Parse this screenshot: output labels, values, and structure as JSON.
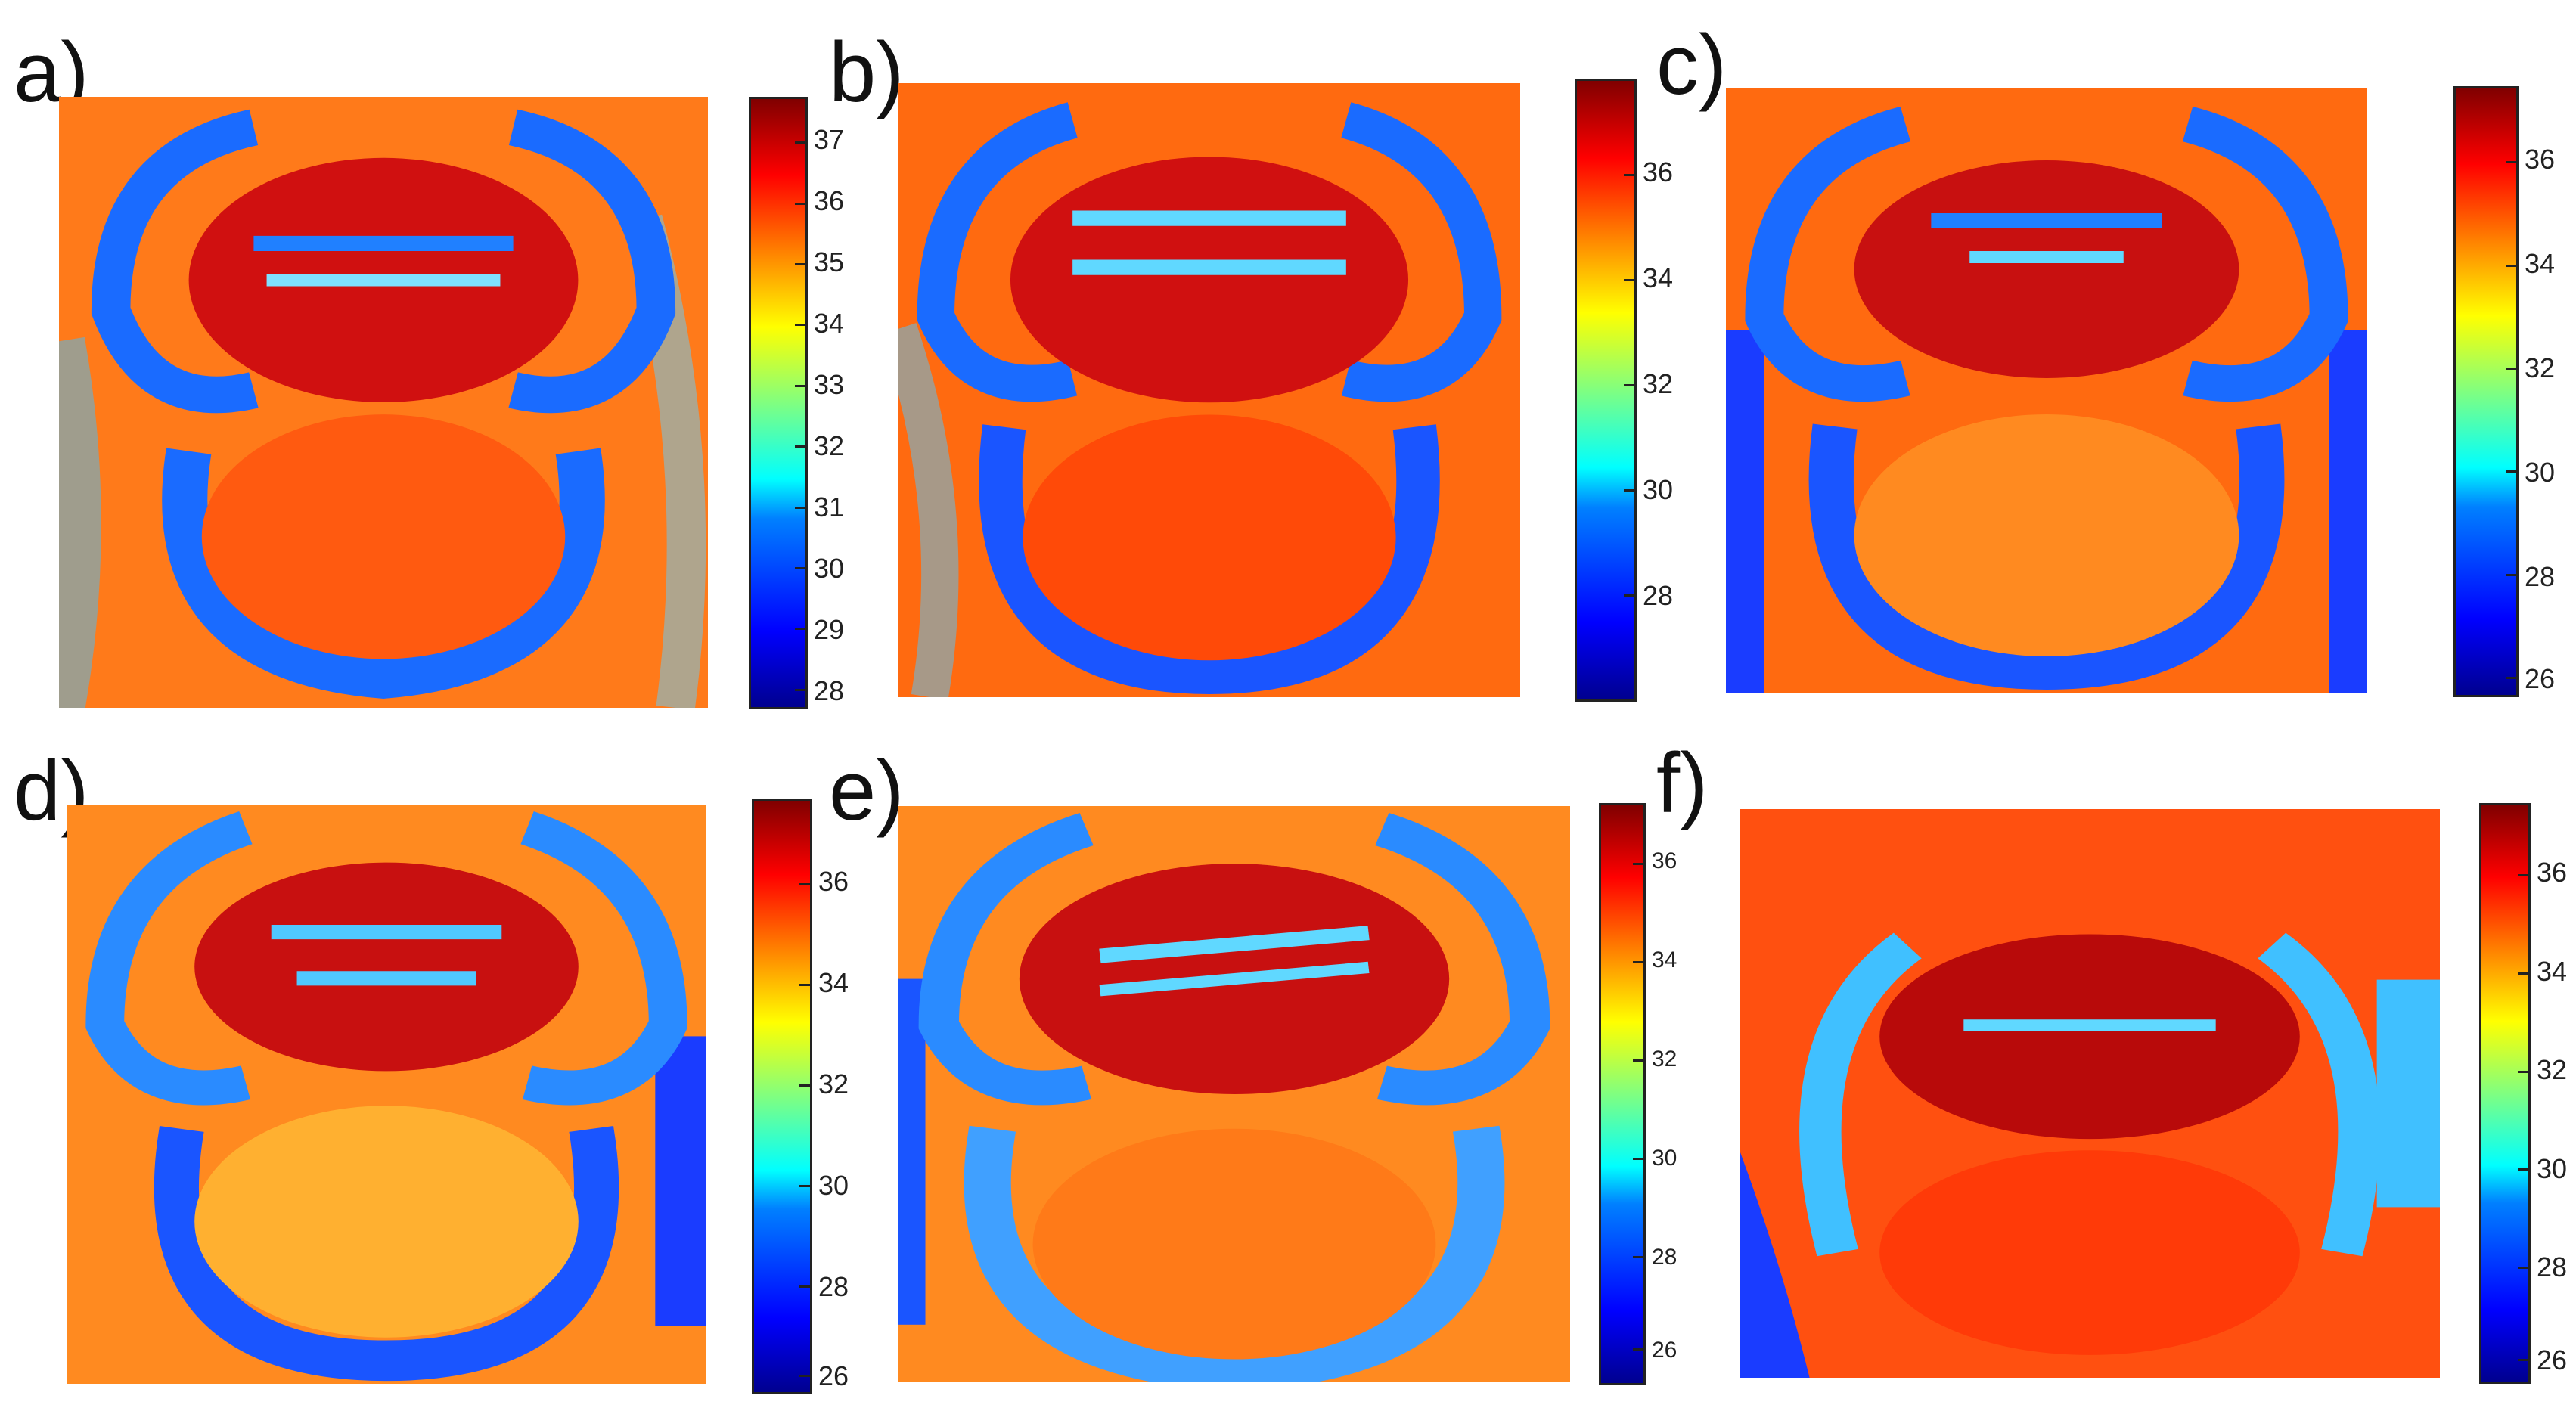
{
  "panels": [
    {
      "label": "a)",
      "ticks": [
        "37",
        "36",
        "35",
        "34",
        "33",
        "32",
        "31",
        "30",
        "29",
        "28"
      ]
    },
    {
      "label": "b)",
      "ticks": [
        "36",
        "34",
        "32",
        "30",
        "28"
      ]
    },
    {
      "label": "c)",
      "ticks": [
        "36",
        "34",
        "32",
        "30",
        "28",
        "26"
      ]
    },
    {
      "label": "d)",
      "ticks": [
        "36",
        "34",
        "32",
        "30",
        "28",
        "26"
      ]
    },
    {
      "label": "e)",
      "ticks": [
        "36",
        "34",
        "32",
        "30",
        "28",
        "26"
      ]
    },
    {
      "label": "f)",
      "ticks": [
        "36",
        "34",
        "32",
        "30",
        "28",
        "26"
      ]
    }
  ],
  "colormap": "jet"
}
